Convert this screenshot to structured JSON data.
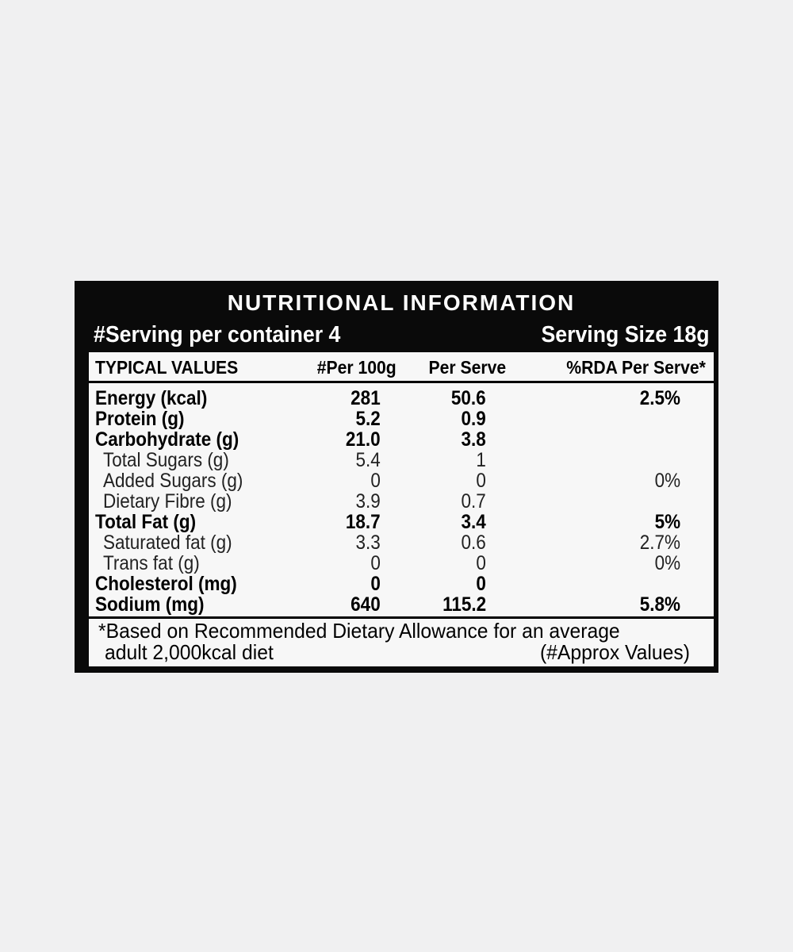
{
  "title": "NUTRITIONAL INFORMATION",
  "serving_per_container": "#Serving per container 4",
  "serving_size": "Serving Size 18g",
  "columns": [
    "TYPICAL VALUES",
    "#Per 100g",
    "Per Serve",
    "%RDA Per Serve*"
  ],
  "rows": [
    {
      "name": "Energy (kcal)",
      "per100g": "281",
      "perServe": "50.6",
      "rda": "2.5%"
    },
    {
      "name": "Protein (g)",
      "per100g": "5.2",
      "perServe": "0.9",
      "rda": ""
    },
    {
      "name": "Carbohydrate (g)",
      "per100g": "21.0",
      "perServe": "3.8",
      "rda": ""
    },
    {
      "name": "Total Sugars (g)",
      "per100g": "5.4",
      "perServe": "1",
      "rda": ""
    },
    {
      "name": "Added Sugars (g)",
      "per100g": "0",
      "perServe": "0",
      "rda": "0%"
    },
    {
      "name": "Dietary Fibre (g)",
      "per100g": "3.9",
      "perServe": "0.7",
      "rda": ""
    },
    {
      "name": "Total Fat (g)",
      "per100g": "18.7",
      "perServe": "3.4",
      "rda": "5%"
    },
    {
      "name": "Saturated fat (g)",
      "per100g": "3.3",
      "perServe": "0.6",
      "rda": "2.7%"
    },
    {
      "name": "Trans fat (g)",
      "per100g": "0",
      "perServe": "0",
      "rda": "0%"
    },
    {
      "name": "Cholesterol (mg)",
      "per100g": "0",
      "perServe": "0",
      "rda": ""
    },
    {
      "name": "Sodium (mg)",
      "per100g": "640",
      "perServe": "115.2",
      "rda": "5.8%"
    }
  ],
  "footnote": {
    "line1": "*Based on Recommended Dietary Allowance for an average",
    "line2": "adult 2,000kcal diet",
    "approx": "(#Approx Values)"
  }
}
